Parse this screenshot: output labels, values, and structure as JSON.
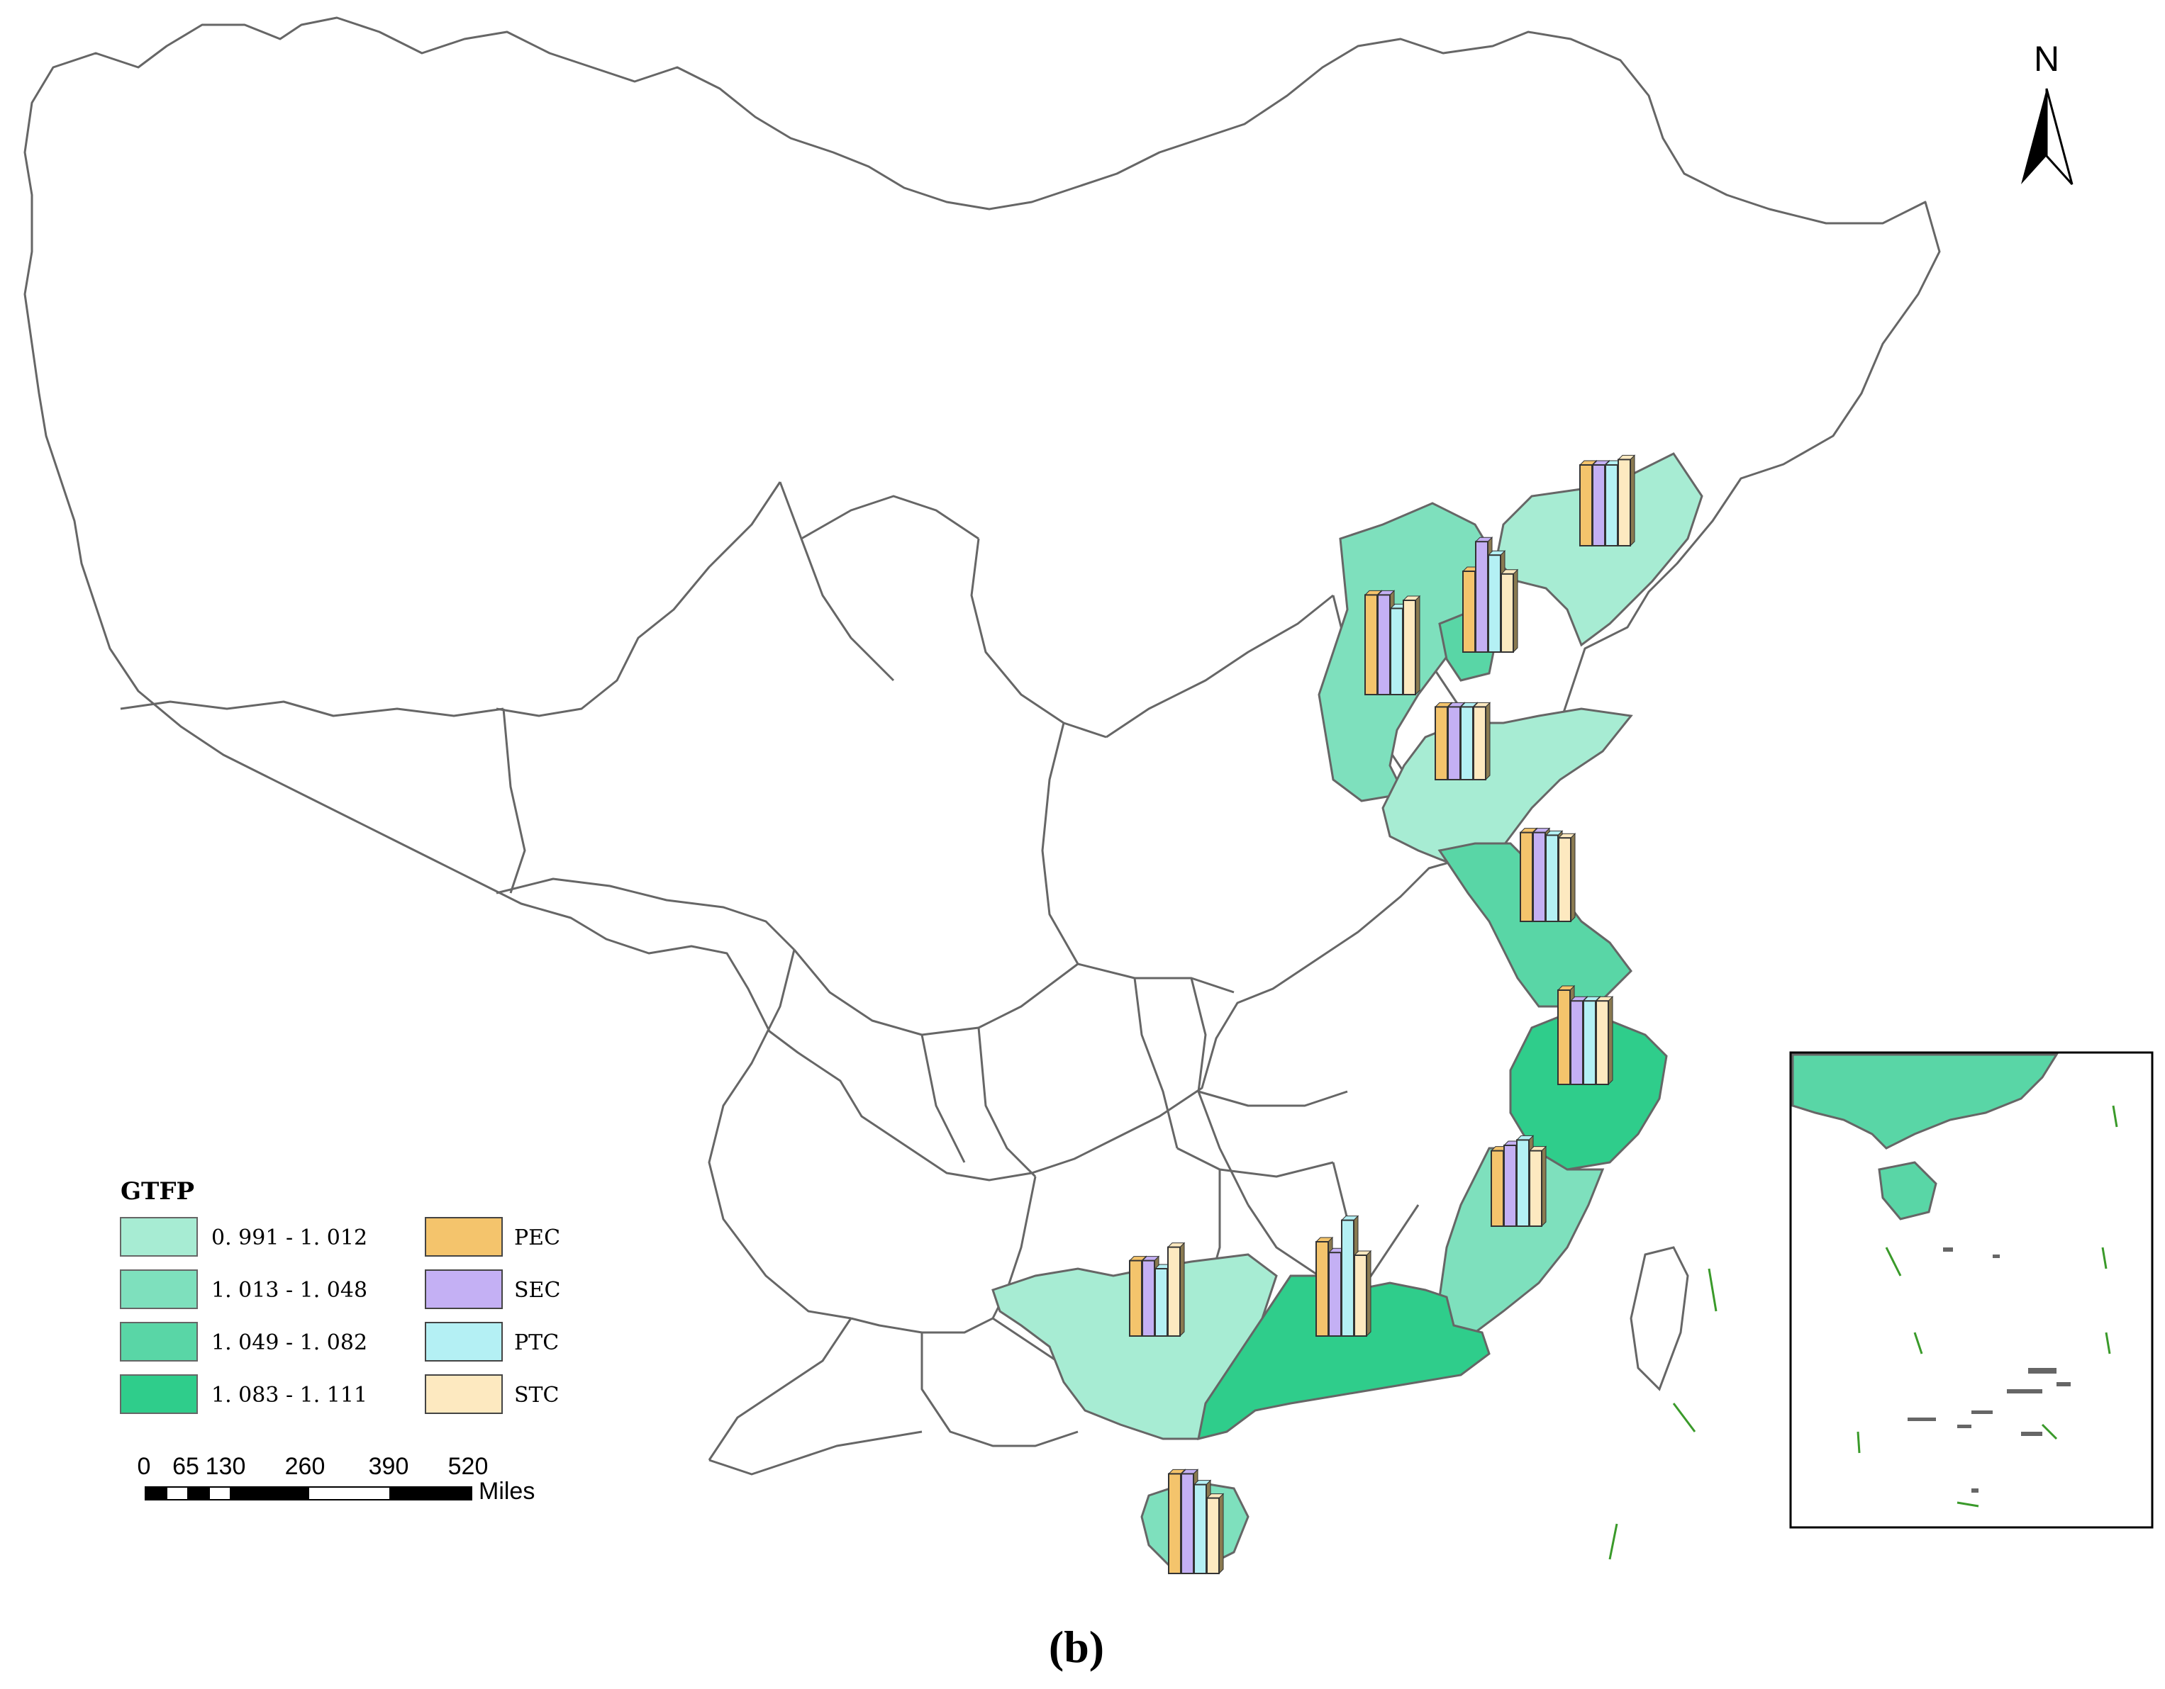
{
  "map": {
    "caption": "(b)",
    "north_label": "N",
    "boundary_color": "#666666"
  },
  "legend": {
    "title": "GTFP",
    "classes": [
      {
        "label": "0. 991  -  1. 012",
        "color": "#a7ecd3"
      },
      {
        "label": "1. 013  -  1. 048",
        "color": "#7ee0bd"
      },
      {
        "label": "1. 049  -  1. 082",
        "color": "#59d6a6"
      },
      {
        "label": "1. 083  -  1. 111",
        "color": "#2fcd8b"
      }
    ],
    "bars": [
      {
        "label": "PEC",
        "color": "#f4c46c"
      },
      {
        "label": "SEC",
        "color": "#c4b0f4"
      },
      {
        "label": "PTC",
        "color": "#b4f0f4"
      },
      {
        "label": "STC",
        "color": "#fde9c0"
      }
    ]
  },
  "scale_bar": {
    "ticks": [
      "0",
      "65",
      "130",
      "260",
      "390",
      "520"
    ],
    "unit": "Miles"
  },
  "provinces": [
    {
      "name_key": "liaoning",
      "class": 0,
      "bars": [
        3,
        3,
        3,
        3.2
      ]
    },
    {
      "name_key": "hebei",
      "class": 1,
      "bars": [
        3.7,
        3.7,
        3.2,
        3.5
      ]
    },
    {
      "name_key": "tianjin",
      "class": 2,
      "bars": [
        3,
        4.1,
        3.6,
        2.9
      ]
    },
    {
      "name_key": "shandong",
      "class": 0,
      "bars": [
        2.7,
        2.7,
        2.7,
        2.7
      ]
    },
    {
      "name_key": "jiangsu",
      "class": 2,
      "bars": [
        3.3,
        3.3,
        3.2,
        3.1
      ]
    },
    {
      "name_key": "zhejiang",
      "class": 3,
      "bars": [
        3.5,
        3.1,
        3.1,
        3.1
      ]
    },
    {
      "name_key": "fujian",
      "class": 1,
      "bars": [
        2.8,
        3,
        3.2,
        2.8
      ]
    },
    {
      "name_key": "guangdong",
      "class": 3,
      "bars": [
        3.5,
        3.1,
        4.3,
        3
      ]
    },
    {
      "name_key": "guangxi",
      "class": 0,
      "bars": [
        2.8,
        2.8,
        2.5,
        3.3
      ]
    },
    {
      "name_key": "hainan",
      "class": 1,
      "bars": [
        3.7,
        3.7,
        3.3,
        2.8
      ]
    }
  ]
}
